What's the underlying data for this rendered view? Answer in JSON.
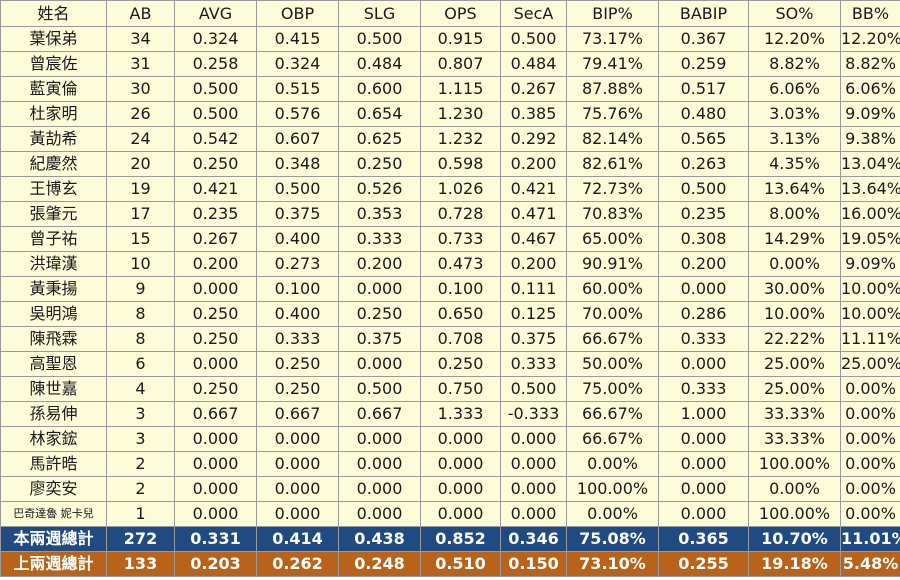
{
  "headers": [
    "姓名",
    "AB",
    "AVG",
    "OBP",
    "SLG",
    "OPS",
    "SecA",
    "BIP%",
    "BABIP",
    "SO%",
    "BB%"
  ],
  "rows": [
    [
      "葉保弟",
      "34",
      "0.324",
      "0.415",
      "0.500",
      "0.915",
      "0.500",
      "73.17%",
      "0.367",
      "12.20%",
      "12.20%"
    ],
    [
      "曾宸佐",
      "31",
      "0.258",
      "0.324",
      "0.484",
      "0.807",
      "0.484",
      "79.41%",
      "0.259",
      "8.82%",
      "8.82%"
    ],
    [
      "藍寅倫",
      "30",
      "0.500",
      "0.515",
      "0.600",
      "1.115",
      "0.267",
      "87.88%",
      "0.517",
      "6.06%",
      "6.06%"
    ],
    [
      "杜家明",
      "26",
      "0.500",
      "0.576",
      "0.654",
      "1.230",
      "0.385",
      "75.76%",
      "0.480",
      "3.03%",
      "9.09%"
    ],
    [
      "黃劼希",
      "24",
      "0.542",
      "0.607",
      "0.625",
      "1.232",
      "0.292",
      "82.14%",
      "0.565",
      "3.13%",
      "9.38%"
    ],
    [
      "紀慶然",
      "20",
      "0.250",
      "0.348",
      "0.250",
      "0.598",
      "0.200",
      "82.61%",
      "0.263",
      "4.35%",
      "13.04%"
    ],
    [
      "王博玄",
      "19",
      "0.421",
      "0.500",
      "0.526",
      "1.026",
      "0.421",
      "72.73%",
      "0.500",
      "13.64%",
      "13.64%"
    ],
    [
      "張肇元",
      "17",
      "0.235",
      "0.375",
      "0.353",
      "0.728",
      "0.471",
      "70.83%",
      "0.235",
      "8.00%",
      "16.00%"
    ],
    [
      "曾子祐",
      "15",
      "0.267",
      "0.400",
      "0.333",
      "0.733",
      "0.467",
      "65.00%",
      "0.308",
      "14.29%",
      "19.05%"
    ],
    [
      "洪瑋漢",
      "10",
      "0.200",
      "0.273",
      "0.200",
      "0.473",
      "0.200",
      "90.91%",
      "0.200",
      "0.00%",
      "9.09%"
    ],
    [
      "黃秉揚",
      "9",
      "0.000",
      "0.100",
      "0.000",
      "0.100",
      "0.111",
      "60.00%",
      "0.000",
      "30.00%",
      "10.00%"
    ],
    [
      "吳明鴻",
      "8",
      "0.250",
      "0.400",
      "0.250",
      "0.650",
      "0.125",
      "70.00%",
      "0.286",
      "10.00%",
      "10.00%"
    ],
    [
      "陳飛霖",
      "8",
      "0.250",
      "0.333",
      "0.375",
      "0.708",
      "0.375",
      "66.67%",
      "0.333",
      "22.22%",
      "11.11%"
    ],
    [
      "高聖恩",
      "6",
      "0.000",
      "0.250",
      "0.000",
      "0.250",
      "0.333",
      "50.00%",
      "0.000",
      "25.00%",
      "25.00%"
    ],
    [
      "陳世嘉",
      "4",
      "0.250",
      "0.250",
      "0.500",
      "0.750",
      "0.500",
      "75.00%",
      "0.333",
      "25.00%",
      "0.00%"
    ],
    [
      "孫易伸",
      "3",
      "0.667",
      "0.667",
      "0.667",
      "1.333",
      "-0.333",
      "66.67%",
      "1.000",
      "33.33%",
      "0.00%"
    ],
    [
      "林家鋐",
      "3",
      "0.000",
      "0.000",
      "0.000",
      "0.000",
      "0.000",
      "66.67%",
      "0.000",
      "33.33%",
      "0.00%"
    ],
    [
      "馬許晧",
      "2",
      "0.000",
      "0.000",
      "0.000",
      "0.000",
      "0.000",
      "0.00%",
      "0.000",
      "100.00%",
      "0.00%"
    ],
    [
      "廖奕安",
      "2",
      "0.000",
      "0.000",
      "0.000",
      "0.000",
      "0.000",
      "100.00%",
      "0.000",
      "0.00%",
      "0.00%"
    ],
    [
      "巴奇達魯 妮卡兒",
      "1",
      "0.000",
      "0.000",
      "0.000",
      "0.000",
      "0.000",
      "0.00%",
      "0.000",
      "100.00%",
      "0.00%"
    ]
  ],
  "totals": {
    "current": [
      "本兩週總計",
      "272",
      "0.331",
      "0.414",
      "0.438",
      "0.852",
      "0.346",
      "75.08%",
      "0.365",
      "10.70%",
      "11.01%"
    ],
    "previous": [
      "上兩週總計",
      "133",
      "0.203",
      "0.262",
      "0.248",
      "0.510",
      "0.150",
      "73.10%",
      "0.255",
      "19.18%",
      "5.48%"
    ]
  },
  "colors": {
    "cell_background": "#fcfcd8",
    "current_total_background": "#1f4a82",
    "previous_total_background": "#b8621a",
    "border": "#9a9a9a"
  }
}
